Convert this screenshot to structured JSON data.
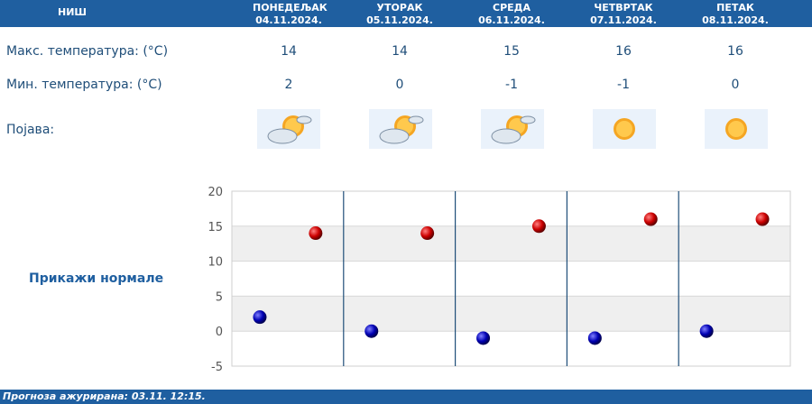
{
  "city": "НИШ",
  "days": [
    {
      "name": "ПОНЕДЕЉАК",
      "date": "04.11.2024.",
      "max": "14",
      "min": "2",
      "icon": "sun-cloud-icon"
    },
    {
      "name": "УТОРАК",
      "date": "05.11.2024.",
      "max": "14",
      "min": "0",
      "icon": "sun-cloud-icon"
    },
    {
      "name": "СРЕДА",
      "date": "06.11.2024.",
      "max": "15",
      "min": "-1",
      "icon": "sun-cloud-icon"
    },
    {
      "name": "ЧЕТВРТАК",
      "date": "07.11.2024.",
      "max": "16",
      "min": "-1",
      "icon": "sun-icon"
    },
    {
      "name": "ПЕТАК",
      "date": "08.11.2024.",
      "max": "16",
      "min": "0",
      "icon": "sun-icon"
    }
  ],
  "labels": {
    "max_temp": "Макс. температура: (°C)",
    "min_temp": "Мин. температура: (°C)",
    "phenomenon": "Појава:"
  },
  "show_normals": "Прикажи нормале",
  "footer": "Прогноза ажурирана:  03.11. 12:15.",
  "colors": {
    "header": "#1f5fa0",
    "max_dot": "#cc0000",
    "min_dot": "#0000b3"
  },
  "chart_data": {
    "type": "scatter",
    "categories": [
      "04.11.2024.",
      "05.11.2024.",
      "06.11.2024.",
      "07.11.2024.",
      "08.11.2024."
    ],
    "series": [
      {
        "values": [
          14,
          14,
          15,
          16,
          16
        ]
      },
      {
        "values": [
          2,
          0,
          -1,
          -1,
          0
        ]
      }
    ],
    "ylim": [
      -5,
      20
    ],
    "yticks": [
      "20",
      "15",
      "10",
      "5",
      "0",
      "-5"
    ],
    "grid": true
  }
}
